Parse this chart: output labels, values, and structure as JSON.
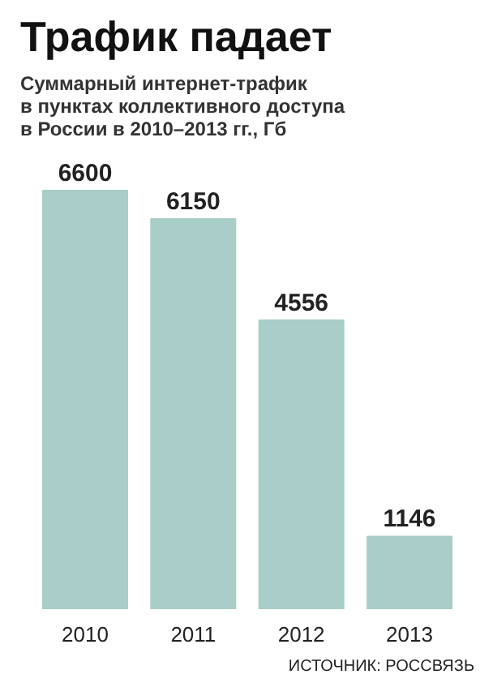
{
  "chart_data": {
    "type": "bar",
    "title": "Трафик падает",
    "subtitle": "Суммарный интернет-трафик\nв пунктах коллективного доступа\nв России в 2010–2013 гг., Гб",
    "categories": [
      "2010",
      "2011",
      "2012",
      "2013"
    ],
    "values": [
      6600,
      6150,
      4556,
      1146
    ],
    "color": "#a9cdc8",
    "data_labels": true,
    "annotations": [
      "ИСТОЧНИК: РОССВЯЗЬ"
    ]
  }
}
